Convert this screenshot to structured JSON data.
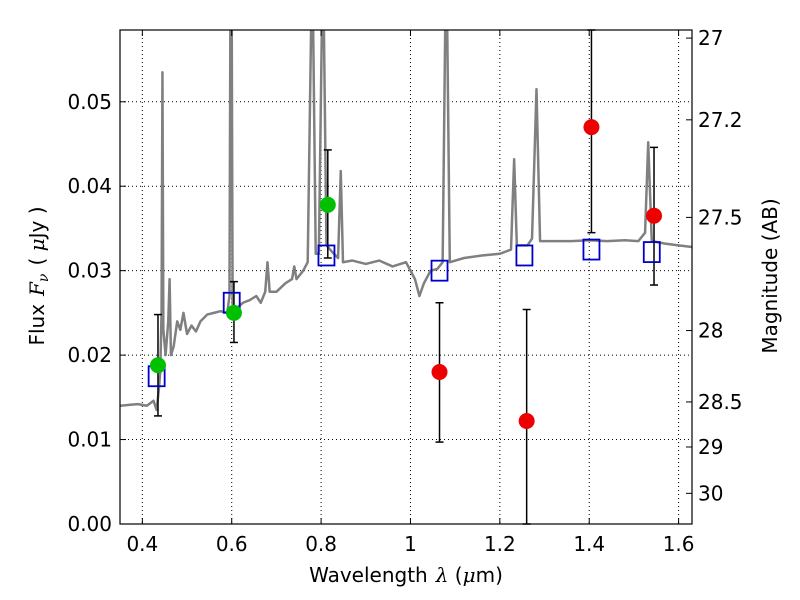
{
  "chart_data": {
    "type": "scatter",
    "xlabel": "Wavelength",
    "xlabel_symbol": "λ",
    "xlabel_unit_open": " (",
    "xlabel_unit_mu": "μ",
    "xlabel_unit_rest": "m)",
    "ylabel_prefix": "Flux",
    "ylabel_symbol": "F",
    "ylabel_sub": "ν",
    "ylabel_unit_open": "( ",
    "ylabel_unit_mu": "μ",
    "ylabel_unit_rest": "Jy )",
    "y2label": "Magnitude (AB)",
    "xlim": [
      0.35,
      1.63
    ],
    "ylim": [
      0,
      0.0585
    ],
    "grid": true,
    "x_ticks": [
      0.4,
      0.6,
      0.8,
      1.0,
      1.2,
      1.4,
      1.6
    ],
    "x_tick_labels": [
      "0.4",
      "0.6",
      "0.8",
      "1",
      "1.2",
      "1.4",
      "1.6"
    ],
    "y_ticks": [
      0.0,
      0.01,
      0.02,
      0.03,
      0.04,
      0.05
    ],
    "y_tick_labels": [
      "0.00",
      "0.01",
      "0.02",
      "0.03",
      "0.04",
      "0.05"
    ],
    "y2_ticks": [
      27,
      27.2,
      27.5,
      28,
      28.5,
      29,
      30
    ],
    "y2_tick_labels": [
      "27",
      "27.2",
      "27.5",
      "28",
      "28.5",
      "29",
      "30"
    ],
    "colors": {
      "spectrum": "#808080",
      "model_box": "#0000cc",
      "green_points": "#00c000",
      "red_points": "#ee0000",
      "errorbar": "#000000"
    },
    "spectrum": [
      [
        0.35,
        0.014
      ],
      [
        0.37,
        0.0141
      ],
      [
        0.39,
        0.0142
      ],
      [
        0.41,
        0.014
      ],
      [
        0.425,
        0.0146
      ],
      [
        0.432,
        0.0135
      ],
      [
        0.437,
        0.016
      ],
      [
        0.44,
        0.018
      ],
      [
        0.443,
        0.025
      ],
      [
        0.445,
        0.0535
      ],
      [
        0.447,
        0.023
      ],
      [
        0.452,
        0.02
      ],
      [
        0.458,
        0.024
      ],
      [
        0.461,
        0.029
      ],
      [
        0.464,
        0.02
      ],
      [
        0.47,
        0.021
      ],
      [
        0.478,
        0.024
      ],
      [
        0.485,
        0.023
      ],
      [
        0.492,
        0.025
      ],
      [
        0.5,
        0.0225
      ],
      [
        0.51,
        0.0235
      ],
      [
        0.52,
        0.0228
      ],
      [
        0.53,
        0.024
      ],
      [
        0.545,
        0.0248
      ],
      [
        0.56,
        0.025
      ],
      [
        0.575,
        0.0252
      ],
      [
        0.59,
        0.025
      ],
      [
        0.595,
        0.027
      ],
      [
        0.597,
        0.06
      ],
      [
        0.6,
        0.06
      ],
      [
        0.602,
        0.026
      ],
      [
        0.61,
        0.0255
      ],
      [
        0.625,
        0.0262
      ],
      [
        0.64,
        0.0265
      ],
      [
        0.655,
        0.027
      ],
      [
        0.665,
        0.0262
      ],
      [
        0.675,
        0.0275
      ],
      [
        0.68,
        0.031
      ],
      [
        0.685,
        0.0275
      ],
      [
        0.7,
        0.0275
      ],
      [
        0.72,
        0.0285
      ],
      [
        0.735,
        0.029
      ],
      [
        0.74,
        0.0305
      ],
      [
        0.745,
        0.029
      ],
      [
        0.76,
        0.03
      ],
      [
        0.77,
        0.031
      ],
      [
        0.778,
        0.06
      ],
      [
        0.782,
        0.06
      ],
      [
        0.788,
        0.032
      ],
      [
        0.795,
        0.032
      ],
      [
        0.802,
        0.06
      ],
      [
        0.806,
        0.06
      ],
      [
        0.812,
        0.033
      ],
      [
        0.825,
        0.0322
      ],
      [
        0.838,
        0.0315
      ],
      [
        0.844,
        0.0418
      ],
      [
        0.849,
        0.031
      ],
      [
        0.87,
        0.0312
      ],
      [
        0.9,
        0.0308
      ],
      [
        0.93,
        0.0312
      ],
      [
        0.96,
        0.0305
      ],
      [
        0.99,
        0.031
      ],
      [
        1.01,
        0.029
      ],
      [
        1.02,
        0.027
      ],
      [
        1.03,
        0.0285
      ],
      [
        1.045,
        0.03
      ],
      [
        1.06,
        0.0302
      ],
      [
        1.072,
        0.031
      ],
      [
        1.078,
        0.06
      ],
      [
        1.082,
        0.06
      ],
      [
        1.088,
        0.031
      ],
      [
        1.12,
        0.0315
      ],
      [
        1.16,
        0.0318
      ],
      [
        1.2,
        0.032
      ],
      [
        1.225,
        0.0325
      ],
      [
        1.232,
        0.0432
      ],
      [
        1.238,
        0.033
      ],
      [
        1.262,
        0.033
      ],
      [
        1.272,
        0.0338
      ],
      [
        1.282,
        0.0515
      ],
      [
        1.29,
        0.0335
      ],
      [
        1.32,
        0.0335
      ],
      [
        1.36,
        0.0335
      ],
      [
        1.4,
        0.0336
      ],
      [
        1.44,
        0.0335
      ],
      [
        1.48,
        0.0336
      ],
      [
        1.51,
        0.0335
      ],
      [
        1.525,
        0.0345
      ],
      [
        1.532,
        0.0452
      ],
      [
        1.54,
        0.0335
      ],
      [
        1.57,
        0.0332
      ],
      [
        1.6,
        0.033
      ],
      [
        1.63,
        0.0328
      ]
    ],
    "model_boxes": [
      {
        "x": 0.432,
        "y": 0.0175
      },
      {
        "x": 0.6,
        "y": 0.0262
      },
      {
        "x": 0.812,
        "y": 0.0318
      },
      {
        "x": 1.065,
        "y": 0.03
      },
      {
        "x": 1.255,
        "y": 0.0318
      },
      {
        "x": 1.405,
        "y": 0.0325
      },
      {
        "x": 1.54,
        "y": 0.0322
      }
    ],
    "green_points": [
      {
        "x": 0.435,
        "y": 0.0188,
        "err_low": 0.0128,
        "err_high": 0.0248
      },
      {
        "x": 0.605,
        "y": 0.025,
        "err_low": 0.0215,
        "err_high": 0.0287
      },
      {
        "x": 0.815,
        "y": 0.0378,
        "err_low": 0.0315,
        "err_high": 0.0443
      }
    ],
    "red_points": [
      {
        "x": 1.065,
        "y": 0.018,
        "err_low": 0.0097,
        "err_high": 0.0262
      },
      {
        "x": 1.26,
        "y": 0.0122,
        "err_low": 0.0,
        "err_high": 0.0254
      },
      {
        "x": 1.405,
        "y": 0.047,
        "err_low": 0.0345,
        "err_high": 0.0585
      },
      {
        "x": 1.545,
        "y": 0.0365,
        "err_low": 0.0283,
        "err_high": 0.0446
      }
    ]
  }
}
